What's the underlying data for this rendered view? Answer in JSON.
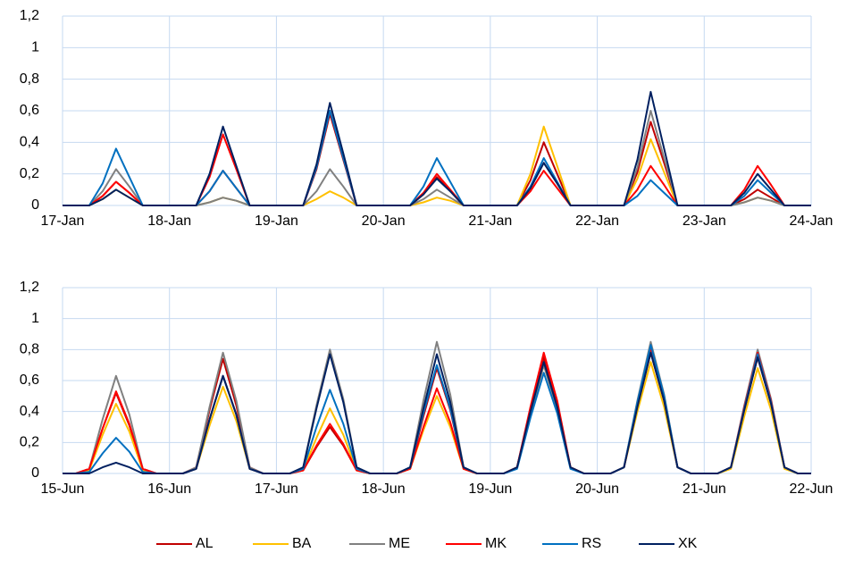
{
  "chart_data": [
    {
      "type": "line",
      "grid": true,
      "x": [
        0,
        0.125,
        0.25,
        0.375,
        0.5,
        0.625,
        0.75,
        0.875,
        1,
        1.125,
        1.25,
        1.375,
        1.5,
        1.625,
        1.75,
        1.875,
        2,
        2.125,
        2.25,
        2.375,
        2.5,
        2.625,
        2.75,
        2.875,
        3,
        3.125,
        3.25,
        3.375,
        3.5,
        3.625,
        3.75,
        3.875,
        4,
        4.125,
        4.25,
        4.375,
        4.5,
        4.625,
        4.75,
        4.875,
        5,
        5.125,
        5.25,
        5.375,
        5.5,
        5.625,
        5.75,
        5.875,
        6,
        6.125,
        6.25,
        6.375,
        6.5,
        6.625,
        6.75,
        6.875,
        7
      ],
      "xlim": [
        0,
        7
      ],
      "xticks": [
        {
          "value": 0,
          "label": "17-Jan"
        },
        {
          "value": 1,
          "label": "18-Jan"
        },
        {
          "value": 2,
          "label": "19-Jan"
        },
        {
          "value": 3,
          "label": "20-Jan"
        },
        {
          "value": 4,
          "label": "21-Jan"
        },
        {
          "value": 5,
          "label": "22-Jan"
        },
        {
          "value": 6,
          "label": "23-Jan"
        },
        {
          "value": 7,
          "label": "24-Jan"
        }
      ],
      "ylim": [
        0,
        1.2
      ],
      "yticks": [
        0,
        {
          "value": 0.2,
          "label": "0,2"
        },
        {
          "value": 0.4,
          "label": "0,4"
        },
        {
          "value": 0.6,
          "label": "0,6"
        },
        {
          "value": 0.8,
          "label": "0,8"
        },
        1,
        {
          "value": 1.2,
          "label": "1,2"
        }
      ],
      "series": [
        {
          "name": "AL",
          "color": "#c00000",
          "values": [
            0,
            0,
            0,
            0.06,
            0.15,
            0.08,
            0,
            0,
            0,
            0,
            0,
            0.09,
            0.22,
            0.11,
            0,
            0,
            0,
            0,
            0,
            0.23,
            0.58,
            0.29,
            0,
            0,
            0,
            0,
            0,
            0.07,
            0.18,
            0.09,
            0,
            0,
            0,
            0,
            0,
            0.16,
            0.4,
            0.2,
            0,
            0,
            0,
            0,
            0,
            0.21,
            0.53,
            0.27,
            0,
            0,
            0,
            0,
            0,
            0.04,
            0.1,
            0.05,
            0,
            0,
            0
          ]
        },
        {
          "name": "BA",
          "color": "#ffc000",
          "values": [
            0,
            0,
            0,
            0.04,
            0.1,
            0.05,
            0,
            0,
            0,
            0,
            0,
            0.02,
            0.05,
            0.03,
            0,
            0,
            0,
            0,
            0,
            0.04,
            0.09,
            0.05,
            0,
            0,
            0,
            0,
            0,
            0.02,
            0.05,
            0.03,
            0,
            0,
            0,
            0,
            0,
            0.2,
            0.5,
            0.25,
            0,
            0,
            0,
            0,
            0,
            0.17,
            0.42,
            0.21,
            0,
            0,
            0,
            0,
            0,
            0.02,
            0.05,
            0.03,
            0,
            0,
            0
          ]
        },
        {
          "name": "ME",
          "color": "#808080",
          "values": [
            0,
            0,
            0,
            0.09,
            0.23,
            0.12,
            0,
            0,
            0,
            0,
            0,
            0.02,
            0.05,
            0.03,
            0,
            0,
            0,
            0,
            0,
            0.09,
            0.23,
            0.12,
            0,
            0,
            0,
            0,
            0,
            0.04,
            0.1,
            0.05,
            0,
            0,
            0,
            0,
            0,
            0.11,
            0.27,
            0.14,
            0,
            0,
            0,
            0,
            0,
            0.24,
            0.6,
            0.3,
            0,
            0,
            0,
            0,
            0,
            0.02,
            0.05,
            0.03,
            0,
            0,
            0
          ]
        },
        {
          "name": "MK",
          "color": "#ff0000",
          "values": [
            0,
            0,
            0,
            0.06,
            0.15,
            0.08,
            0,
            0,
            0,
            0,
            0,
            0.18,
            0.45,
            0.23,
            0,
            0,
            0,
            0,
            0,
            0.24,
            0.6,
            0.3,
            0,
            0,
            0,
            0,
            0,
            0.08,
            0.2,
            0.1,
            0,
            0,
            0,
            0,
            0,
            0.09,
            0.22,
            0.11,
            0,
            0,
            0,
            0,
            0,
            0.1,
            0.25,
            0.13,
            0,
            0,
            0,
            0,
            0,
            0.1,
            0.25,
            0.13,
            0,
            0,
            0
          ]
        },
        {
          "name": "RS",
          "color": "#0070c0",
          "values": [
            0,
            0,
            0,
            0.14,
            0.36,
            0.18,
            0,
            0,
            0,
            0,
            0,
            0.09,
            0.22,
            0.11,
            0,
            0,
            0,
            0,
            0,
            0.24,
            0.6,
            0.3,
            0,
            0,
            0,
            0,
            0,
            0.12,
            0.3,
            0.15,
            0,
            0,
            0,
            0,
            0,
            0.12,
            0.3,
            0.15,
            0,
            0,
            0,
            0,
            0,
            0.06,
            0.16,
            0.08,
            0,
            0,
            0,
            0,
            0,
            0.06,
            0.16,
            0.08,
            0,
            0,
            0
          ]
        },
        {
          "name": "XK",
          "color": "#002060",
          "values": [
            0,
            0,
            0,
            0.04,
            0.1,
            0.05,
            0,
            0,
            0,
            0,
            0,
            0.2,
            0.5,
            0.25,
            0,
            0,
            0,
            0,
            0,
            0.26,
            0.65,
            0.33,
            0,
            0,
            0,
            0,
            0,
            0.07,
            0.17,
            0.09,
            0,
            0,
            0,
            0,
            0,
            0.11,
            0.27,
            0.14,
            0,
            0,
            0,
            0,
            0,
            0.29,
            0.72,
            0.36,
            0,
            0,
            0,
            0,
            0,
            0.08,
            0.2,
            0.1,
            0,
            0,
            0
          ]
        }
      ]
    },
    {
      "type": "line",
      "grid": true,
      "x": [
        0,
        0.125,
        0.25,
        0.375,
        0.5,
        0.625,
        0.75,
        0.875,
        1,
        1.125,
        1.25,
        1.375,
        1.5,
        1.625,
        1.75,
        1.875,
        2,
        2.125,
        2.25,
        2.375,
        2.5,
        2.625,
        2.75,
        2.875,
        3,
        3.125,
        3.25,
        3.375,
        3.5,
        3.625,
        3.75,
        3.875,
        4,
        4.125,
        4.25,
        4.375,
        4.5,
        4.625,
        4.75,
        4.875,
        5,
        5.125,
        5.25,
        5.375,
        5.5,
        5.625,
        5.75,
        5.875,
        6,
        6.125,
        6.25,
        6.375,
        6.5,
        6.625,
        6.75,
        6.875,
        7
      ],
      "xlim": [
        0,
        7
      ],
      "xticks": [
        {
          "value": 0,
          "label": "15-Jun"
        },
        {
          "value": 1,
          "label": "16-Jun"
        },
        {
          "value": 2,
          "label": "17-Jun"
        },
        {
          "value": 3,
          "label": "18-Jun"
        },
        {
          "value": 4,
          "label": "19-Jun"
        },
        {
          "value": 5,
          "label": "20-Jun"
        },
        {
          "value": 6,
          "label": "21-Jun"
        },
        {
          "value": 7,
          "label": "22-Jun"
        }
      ],
      "ylim": [
        0,
        1.2
      ],
      "yticks": [
        0,
        {
          "value": 0.2,
          "label": "0,2"
        },
        {
          "value": 0.4,
          "label": "0,4"
        },
        {
          "value": 0.6,
          "label": "0,6"
        },
        {
          "value": 0.8,
          "label": "0,8"
        },
        1,
        {
          "value": 1.2,
          "label": "1,2"
        }
      ],
      "series": [
        {
          "name": "AL",
          "color": "#c00000",
          "values": [
            0,
            0,
            0.03,
            0.29,
            0.52,
            0.31,
            0.03,
            0,
            0,
            0,
            0.04,
            0.41,
            0.74,
            0.44,
            0.04,
            0,
            0,
            0,
            0.02,
            0.17,
            0.3,
            0.18,
            0.02,
            0,
            0,
            0,
            0.03,
            0.37,
            0.68,
            0.41,
            0.03,
            0,
            0,
            0,
            0.04,
            0.41,
            0.75,
            0.45,
            0.04,
            0,
            0,
            0,
            0.04,
            0.43,
            0.78,
            0.47,
            0.04,
            0,
            0,
            0,
            0.04,
            0.41,
            0.75,
            0.45,
            0.04,
            0,
            0
          ]
        },
        {
          "name": "BA",
          "color": "#ffc000",
          "values": [
            0,
            0,
            0.02,
            0.25,
            0.45,
            0.27,
            0.02,
            0,
            0,
            0,
            0.03,
            0.31,
            0.56,
            0.34,
            0.03,
            0,
            0,
            0,
            0.02,
            0.23,
            0.42,
            0.25,
            0.02,
            0,
            0,
            0,
            0.03,
            0.28,
            0.5,
            0.3,
            0.03,
            0,
            0,
            0,
            0.04,
            0.39,
            0.7,
            0.42,
            0.04,
            0,
            0,
            0,
            0.04,
            0.4,
            0.72,
            0.43,
            0.04,
            0,
            0,
            0,
            0.03,
            0.37,
            0.68,
            0.41,
            0.03,
            0,
            0
          ]
        },
        {
          "name": "ME",
          "color": "#808080",
          "values": [
            0,
            0,
            0.03,
            0.35,
            0.63,
            0.38,
            0.03,
            0,
            0,
            0,
            0.04,
            0.43,
            0.78,
            0.47,
            0.04,
            0,
            0,
            0,
            0.04,
            0.44,
            0.8,
            0.48,
            0.04,
            0,
            0,
            0,
            0.04,
            0.47,
            0.85,
            0.51,
            0.04,
            0,
            0,
            0,
            0.04,
            0.39,
            0.7,
            0.42,
            0.04,
            0,
            0,
            0,
            0.04,
            0.47,
            0.85,
            0.51,
            0.04,
            0,
            0,
            0,
            0.04,
            0.44,
            0.8,
            0.48,
            0.04,
            0,
            0
          ]
        },
        {
          "name": "MK",
          "color": "#ff0000",
          "values": [
            0,
            0,
            0.03,
            0.29,
            0.53,
            0.32,
            0.03,
            0,
            0,
            0,
            0.03,
            0.35,
            0.63,
            0.38,
            0.03,
            0,
            0,
            0,
            0.02,
            0.18,
            0.32,
            0.19,
            0.02,
            0,
            0,
            0,
            0.03,
            0.3,
            0.55,
            0.33,
            0.03,
            0,
            0,
            0,
            0.04,
            0.43,
            0.78,
            0.47,
            0.04,
            0,
            0,
            0,
            0.04,
            0.44,
            0.8,
            0.48,
            0.04,
            0,
            0,
            0,
            0.04,
            0.43,
            0.78,
            0.47,
            0.04,
            0,
            0
          ]
        },
        {
          "name": "RS",
          "color": "#0070c0",
          "values": [
            0,
            0,
            0.01,
            0.13,
            0.23,
            0.14,
            0.01,
            0,
            0,
            0,
            0.03,
            0.35,
            0.63,
            0.38,
            0.03,
            0,
            0,
            0,
            0.03,
            0.3,
            0.54,
            0.32,
            0.03,
            0,
            0,
            0,
            0.04,
            0.39,
            0.7,
            0.42,
            0.04,
            0,
            0,
            0,
            0.03,
            0.36,
            0.65,
            0.39,
            0.03,
            0,
            0,
            0,
            0.04,
            0.46,
            0.83,
            0.5,
            0.04,
            0,
            0,
            0,
            0.04,
            0.42,
            0.77,
            0.46,
            0.04,
            0,
            0
          ]
        },
        {
          "name": "XK",
          "color": "#002060",
          "values": [
            0,
            0,
            0,
            0.04,
            0.07,
            0.04,
            0,
            0,
            0,
            0,
            0.03,
            0.35,
            0.63,
            0.38,
            0.03,
            0,
            0,
            0,
            0.04,
            0.42,
            0.77,
            0.46,
            0.04,
            0,
            0,
            0,
            0.04,
            0.42,
            0.77,
            0.46,
            0.04,
            0,
            0,
            0,
            0.04,
            0.4,
            0.72,
            0.43,
            0.04,
            0,
            0,
            0,
            0.04,
            0.43,
            0.78,
            0.47,
            0.04,
            0,
            0,
            0,
            0.04,
            0.41,
            0.75,
            0.45,
            0.04,
            0,
            0
          ]
        }
      ]
    }
  ]
}
